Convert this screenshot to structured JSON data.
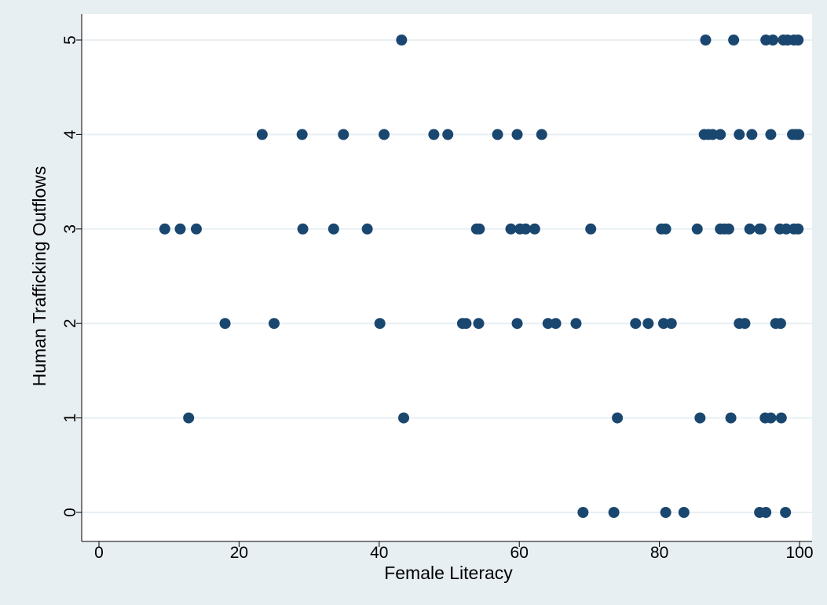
{
  "chart_data": {
    "type": "scatter",
    "title": "",
    "xlabel": "Female Literacy",
    "ylabel": "Human Trafficking Outflows",
    "xlim": [
      0,
      100
    ],
    "ylim": [
      0,
      5
    ],
    "x_ticks": [
      0,
      20,
      40,
      60,
      80,
      100
    ],
    "y_ticks": [
      0,
      1,
      2,
      3,
      4,
      5
    ],
    "grid": "horizontal",
    "colors": {
      "background": "#e8eff3",
      "plot_area": "#ffffff",
      "marker": "#1a476f",
      "grid": "#e8eff3"
    },
    "points": [
      {
        "x": 43.2,
        "y": 5
      },
      {
        "x": 86.6,
        "y": 5
      },
      {
        "x": 90.6,
        "y": 5
      },
      {
        "x": 95.2,
        "y": 5
      },
      {
        "x": 96.2,
        "y": 5
      },
      {
        "x": 97.7,
        "y": 5
      },
      {
        "x": 98.3,
        "y": 5
      },
      {
        "x": 99.2,
        "y": 5
      },
      {
        "x": 99.8,
        "y": 5
      },
      {
        "x": 23.3,
        "y": 4
      },
      {
        "x": 29.0,
        "y": 4
      },
      {
        "x": 34.9,
        "y": 4
      },
      {
        "x": 40.7,
        "y": 4
      },
      {
        "x": 47.8,
        "y": 4
      },
      {
        "x": 49.8,
        "y": 4
      },
      {
        "x": 56.9,
        "y": 4
      },
      {
        "x": 59.7,
        "y": 4
      },
      {
        "x": 63.2,
        "y": 4
      },
      {
        "x": 86.4,
        "y": 4
      },
      {
        "x": 87.0,
        "y": 4
      },
      {
        "x": 87.6,
        "y": 4
      },
      {
        "x": 88.7,
        "y": 4
      },
      {
        "x": 91.4,
        "y": 4
      },
      {
        "x": 93.2,
        "y": 4
      },
      {
        "x": 95.9,
        "y": 4
      },
      {
        "x": 99.0,
        "y": 4
      },
      {
        "x": 99.5,
        "y": 4
      },
      {
        "x": 99.9,
        "y": 4
      },
      {
        "x": 9.4,
        "y": 3
      },
      {
        "x": 11.6,
        "y": 3
      },
      {
        "x": 13.9,
        "y": 3
      },
      {
        "x": 29.1,
        "y": 3
      },
      {
        "x": 33.5,
        "y": 3
      },
      {
        "x": 38.3,
        "y": 3
      },
      {
        "x": 53.9,
        "y": 3
      },
      {
        "x": 54.3,
        "y": 3
      },
      {
        "x": 58.8,
        "y": 3
      },
      {
        "x": 60.1,
        "y": 3
      },
      {
        "x": 60.9,
        "y": 3
      },
      {
        "x": 62.2,
        "y": 3
      },
      {
        "x": 70.2,
        "y": 3
      },
      {
        "x": 80.3,
        "y": 3
      },
      {
        "x": 80.9,
        "y": 3
      },
      {
        "x": 85.4,
        "y": 3
      },
      {
        "x": 88.7,
        "y": 3
      },
      {
        "x": 89.3,
        "y": 3
      },
      {
        "x": 89.9,
        "y": 3
      },
      {
        "x": 92.9,
        "y": 3
      },
      {
        "x": 94.3,
        "y": 3
      },
      {
        "x": 94.5,
        "y": 3
      },
      {
        "x": 97.2,
        "y": 3
      },
      {
        "x": 98.1,
        "y": 3
      },
      {
        "x": 99.2,
        "y": 3
      },
      {
        "x": 99.8,
        "y": 3
      },
      {
        "x": 18.0,
        "y": 2
      },
      {
        "x": 25.0,
        "y": 2
      },
      {
        "x": 40.1,
        "y": 2
      },
      {
        "x": 51.9,
        "y": 2
      },
      {
        "x": 52.4,
        "y": 2
      },
      {
        "x": 54.2,
        "y": 2
      },
      {
        "x": 59.7,
        "y": 2
      },
      {
        "x": 64.1,
        "y": 2
      },
      {
        "x": 65.2,
        "y": 2
      },
      {
        "x": 68.1,
        "y": 2
      },
      {
        "x": 76.6,
        "y": 2
      },
      {
        "x": 78.4,
        "y": 2
      },
      {
        "x": 80.6,
        "y": 2
      },
      {
        "x": 81.7,
        "y": 2
      },
      {
        "x": 91.4,
        "y": 2
      },
      {
        "x": 92.2,
        "y": 2
      },
      {
        "x": 96.6,
        "y": 2
      },
      {
        "x": 97.3,
        "y": 2
      },
      {
        "x": 12.8,
        "y": 1
      },
      {
        "x": 43.5,
        "y": 1
      },
      {
        "x": 74.0,
        "y": 1
      },
      {
        "x": 85.8,
        "y": 1
      },
      {
        "x": 90.2,
        "y": 1
      },
      {
        "x": 95.1,
        "y": 1
      },
      {
        "x": 95.9,
        "y": 1
      },
      {
        "x": 97.4,
        "y": 1
      },
      {
        "x": 69.1,
        "y": 0
      },
      {
        "x": 73.5,
        "y": 0
      },
      {
        "x": 80.9,
        "y": 0
      },
      {
        "x": 83.5,
        "y": 0
      },
      {
        "x": 94.3,
        "y": 0
      },
      {
        "x": 95.2,
        "y": 0
      },
      {
        "x": 98.0,
        "y": 0
      }
    ]
  }
}
